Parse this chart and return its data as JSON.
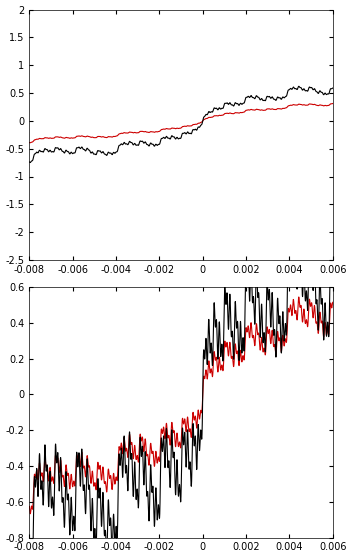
{
  "xmin": -0.008,
  "xmax": 0.006,
  "panel1_ylim": [
    -2.5,
    2.0
  ],
  "panel2_ylim": [
    -0.8,
    0.6
  ],
  "panel1_yticks": [
    -2.5,
    -2.0,
    -1.5,
    -1.0,
    -0.5,
    0.0,
    0.5,
    1.0,
    1.5,
    2.0
  ],
  "panel2_yticks": [
    -0.8,
    -0.6,
    -0.4,
    -0.2,
    0.0,
    0.2,
    0.4,
    0.6
  ],
  "xticks": [
    -0.008,
    -0.006,
    -0.004,
    -0.002,
    0.0,
    0.002,
    0.004,
    0.006
  ],
  "black_color": "#000000",
  "red_color": "#cc0000",
  "linewidth": 0.8,
  "n_terms": 13,
  "n_points": 50000
}
